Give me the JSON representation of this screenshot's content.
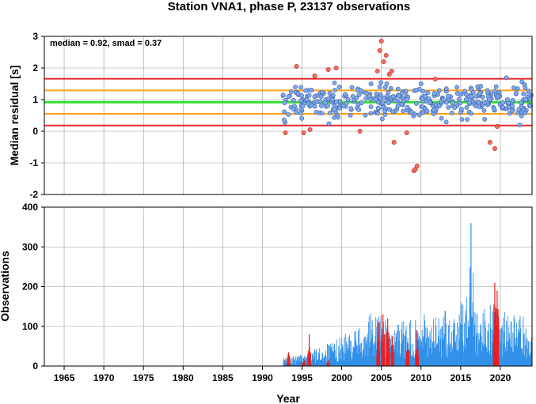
{
  "title": "Station VNA1, phase P, 23137 observations",
  "chart_data": [
    {
      "type": "scatter",
      "ylabel": "Median residual [s]",
      "xlabel": "",
      "annotation": "median = 0.92, smad = 0.37",
      "xlim": [
        1962.5,
        2024.0
      ],
      "ylim": [
        -2,
        3
      ],
      "yticks": [
        "-2",
        "-1",
        "0",
        "1",
        "2",
        "3"
      ],
      "grid": true,
      "reference_lines": [
        {
          "y": 0.92,
          "color": "#33dd33",
          "role": "median"
        },
        {
          "y": 1.29,
          "color": "#ffa31a",
          "role": "+1 smad"
        },
        {
          "y": 0.55,
          "color": "#ffa31a",
          "role": "-1 smad"
        },
        {
          "y": 1.66,
          "color": "#e8262a",
          "role": "+2 smad"
        },
        {
          "y": 0.18,
          "color": "#e8262a",
          "role": "-2 smad"
        }
      ],
      "point_colors": {
        "inlier": "#7fa8ee",
        "outlier": "#f26b5e"
      },
      "data_span": [
        1992.6,
        2024.0
      ],
      "series": [
        {
          "group": "inlier",
          "x": [
            1992.8,
            1993.3,
            1993.9,
            1994.5,
            1995.1,
            1995.6,
            1996.2,
            1996.8,
            1997.4,
            1997.9,
            1998.5,
            1999.1,
            1999.7,
            2000.2,
            2000.8,
            2001.4,
            2002.0,
            2002.5,
            2003.1,
            2003.7,
            2004.3,
            2004.8,
            2005.9,
            2006.5,
            2007.1,
            2007.6,
            2008.2,
            2008.8,
            2009.4,
            2010.0,
            2010.5,
            2011.1,
            2011.7,
            2012.3,
            2012.8,
            2013.4,
            2014.0,
            2014.6,
            2015.1,
            2015.7,
            2016.3,
            2016.9,
            2017.4,
            2018.0,
            2018.6,
            2019.2,
            2019.7,
            2020.3,
            2020.9,
            2021.5,
            2022.0,
            2022.6,
            2023.2,
            2023.8
          ],
          "y": [
            0.9,
            1.1,
            0.7,
            1.2,
            0.8,
            1.0,
            1.3,
            0.6,
            1.1,
            0.9,
            1.2,
            0.7,
            1.4,
            0.8,
            1.0,
            1.1,
            1.3,
            0.9,
            1.2,
            1.5,
            1.0,
            1.4,
            0.9,
            1.1,
            0.8,
            1.2,
            1.0,
            0.6,
            1.3,
            1.5,
            1.1,
            0.9,
            1.2,
            0.8,
            1.0,
            1.1,
            0.9,
            1.2,
            0.7,
            1.0,
            1.1,
            0.8,
            1.2,
            0.9,
            1.0,
            0.7,
            1.1,
            0.9,
            1.0,
            0.8,
            1.2,
            0.9,
            1.0,
            0.8
          ]
        },
        {
          "group": "outlier",
          "x": [
            1992.9,
            1994.3,
            1995.2,
            1996.0,
            1996.6,
            1998.3,
            1999.3,
            2002.3,
            2004.5,
            2004.8,
            2005.0,
            2005.3,
            2005.6,
            2006.0,
            2006.3,
            2006.6,
            2008.2,
            2009.1,
            2009.3,
            2009.5,
            2011.8,
            2018.7,
            2019.3,
            2019.6
          ],
          "y": [
            -0.05,
            2.05,
            -0.05,
            0.05,
            1.75,
            1.95,
            2.0,
            0.0,
            1.9,
            2.55,
            2.85,
            2.2,
            2.4,
            1.8,
            1.9,
            -0.35,
            -0.05,
            -1.25,
            -1.2,
            -1.1,
            1.65,
            -0.35,
            -0.55,
            0.15
          ]
        }
      ]
    },
    {
      "type": "bar",
      "ylabel": "Observations",
      "xlabel": "Year",
      "xlim": [
        1962.5,
        2024.0
      ],
      "ylim": [
        0,
        400
      ],
      "yticks": [
        "0",
        "100",
        "200",
        "300",
        "400"
      ],
      "xticks": [
        "1965",
        "1970",
        "1975",
        "1980",
        "1985",
        "1990",
        "1995",
        "2000",
        "2005",
        "2010",
        "2015",
        "2020"
      ],
      "grid": true,
      "colors": {
        "accepted": "#2f8fe8",
        "rejected": "#ee1c1c"
      },
      "series": [
        {
          "name": "accepted",
          "x": [
            1993.0,
            1994.0,
            1995.0,
            1996.0,
            1997.0,
            1998.0,
            1999.0,
            2000.0,
            2001.0,
            2002.0,
            2003.0,
            2004.0,
            2005.0,
            2006.0,
            2007.0,
            2008.0,
            2009.0,
            2010.0,
            2011.0,
            2012.0,
            2013.0,
            2014.0,
            2015.0,
            2016.0,
            2016.3,
            2017.0,
            2018.0,
            2019.0,
            2020.0,
            2021.0,
            2022.0,
            2023.0,
            2023.8
          ],
          "values": [
            20,
            25,
            30,
            40,
            45,
            55,
            60,
            80,
            85,
            95,
            120,
            150,
            140,
            90,
            110,
            115,
            120,
            130,
            135,
            125,
            140,
            145,
            165,
            180,
            360,
            170,
            150,
            160,
            140,
            135,
            130,
            125,
            95
          ]
        },
        {
          "name": "rejected",
          "x": [
            1993.3,
            1995.2,
            1995.9,
            1998.3,
            2004.6,
            2005.2,
            2005.8,
            2006.4,
            2008.3,
            2009.5,
            2019.3,
            2019.6
          ],
          "values": [
            35,
            20,
            80,
            15,
            110,
            130,
            120,
            75,
            60,
            90,
            210,
            190
          ]
        }
      ]
    }
  ]
}
